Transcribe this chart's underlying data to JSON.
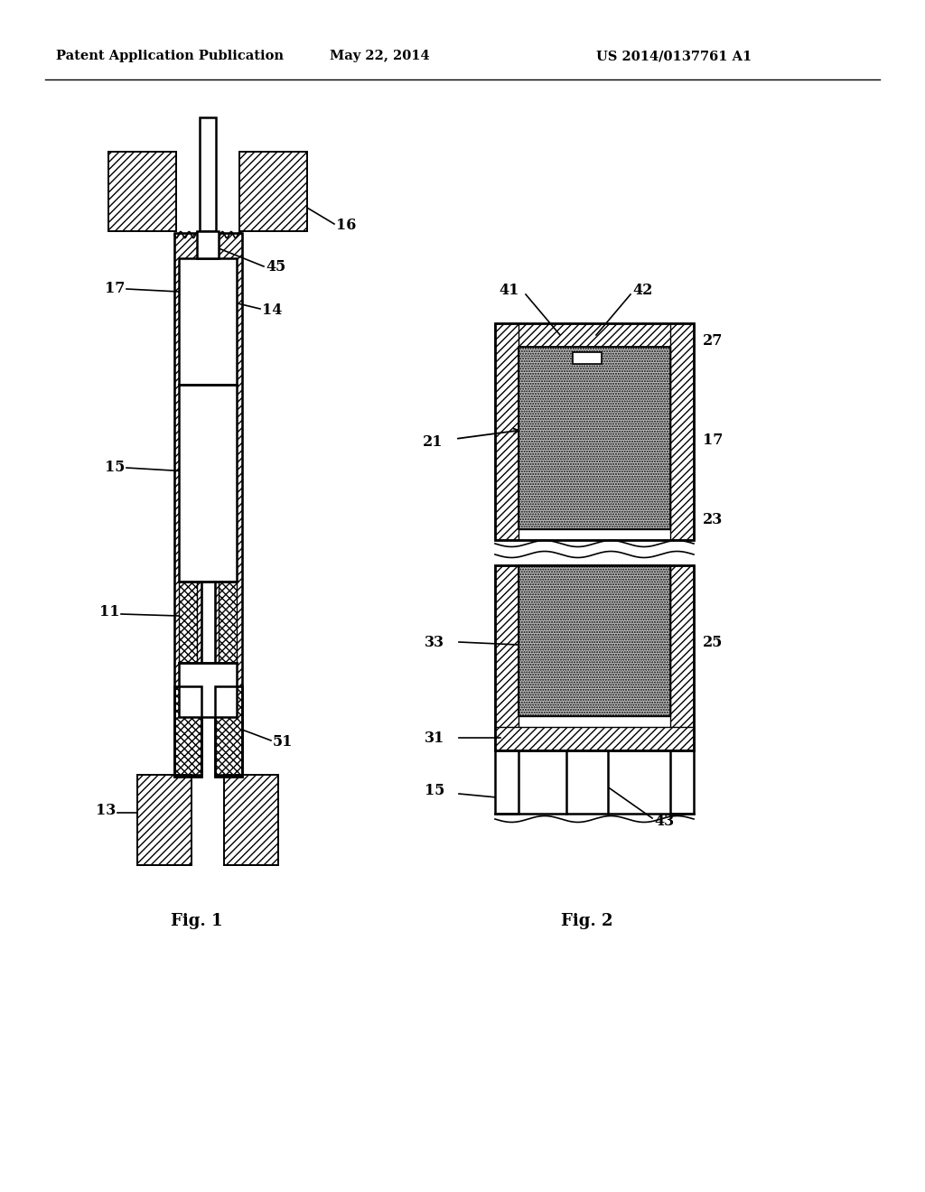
{
  "bg_color": "#ffffff",
  "header_left": "Patent Application Publication",
  "header_center": "May 22, 2014",
  "header_right": "US 2014/0137761 A1",
  "fig1_label": "Fig. 1",
  "fig2_label": "Fig. 2",
  "line_color": "#000000",
  "stipple_color": "#c0c0c0"
}
